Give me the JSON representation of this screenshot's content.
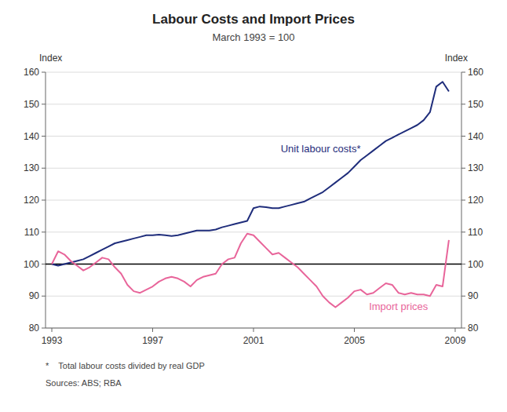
{
  "chart_data": {
    "type": "line",
    "title": "Labour Costs and Import Prices",
    "subtitle": "March 1993 = 100",
    "y_label": "Index",
    "y2_label": "Index",
    "footnotes": [
      "*    Total labour costs divided by real GDP",
      "Sources: ABS; RBA"
    ],
    "grid": true,
    "baseline": 100,
    "xlim": [
      1992.75,
      2009.25
    ],
    "xticks": [
      1993,
      1997,
      2001,
      2005,
      2009
    ],
    "ylim": [
      80,
      160
    ],
    "yticks": [
      80,
      90,
      100,
      110,
      120,
      130,
      140,
      150,
      160
    ],
    "y2lim": [
      80,
      160
    ],
    "y2ticks": [
      80,
      90,
      100,
      110,
      120,
      130,
      140,
      150,
      160
    ],
    "x": [
      1993.0,
      1993.25,
      1993.5,
      1993.75,
      1994.0,
      1994.25,
      1994.5,
      1994.75,
      1995.0,
      1995.25,
      1995.5,
      1995.75,
      1996.0,
      1996.25,
      1996.5,
      1996.75,
      1997.0,
      1997.25,
      1997.5,
      1997.75,
      1998.0,
      1998.25,
      1998.5,
      1998.75,
      1999.0,
      1999.25,
      1999.5,
      1999.75,
      2000.0,
      2000.25,
      2000.5,
      2000.75,
      2001.0,
      2001.25,
      2001.5,
      2001.75,
      2002.0,
      2002.25,
      2002.5,
      2002.75,
      2003.0,
      2003.25,
      2003.5,
      2003.75,
      2004.0,
      2004.25,
      2004.5,
      2004.75,
      2005.0,
      2005.25,
      2005.5,
      2005.75,
      2006.0,
      2006.25,
      2006.5,
      2006.75,
      2007.0,
      2007.25,
      2007.5,
      2007.75,
      2008.0,
      2008.25,
      2008.5,
      2008.75
    ],
    "series": [
      {
        "name": "Unit labour costs*",
        "color": "#1F2D7B",
        "values": [
          100.0,
          99.5,
          100.0,
          100.5,
          101.0,
          101.5,
          102.5,
          103.5,
          104.5,
          105.5,
          106.5,
          107.0,
          107.5,
          108.0,
          108.5,
          109.0,
          109.0,
          109.2,
          109.0,
          108.8,
          109.0,
          109.5,
          110.0,
          110.5,
          110.5,
          110.5,
          110.8,
          111.5,
          112.0,
          112.5,
          113.0,
          113.5,
          117.5,
          118.0,
          117.8,
          117.5,
          117.5,
          118.0,
          118.5,
          119.0,
          119.5,
          120.5,
          121.5,
          122.5,
          124.0,
          125.5,
          127.0,
          128.5,
          130.5,
          132.5,
          134.0,
          135.5,
          137.0,
          138.5,
          139.5,
          140.5,
          141.5,
          142.5,
          143.5,
          145.0,
          147.5,
          155.5,
          157.0,
          154.0
        ]
      },
      {
        "name": "Import prices",
        "color": "#E8659A",
        "values": [
          100.0,
          104.0,
          103.0,
          101.0,
          99.5,
          98.0,
          99.0,
          100.5,
          102.0,
          101.5,
          99.0,
          97.0,
          93.5,
          91.5,
          91.0,
          92.0,
          93.0,
          94.5,
          95.5,
          96.0,
          95.5,
          94.5,
          93.0,
          95.0,
          96.0,
          96.5,
          97.0,
          100.0,
          101.5,
          102.0,
          106.5,
          109.5,
          109.0,
          107.0,
          105.0,
          103.0,
          103.5,
          102.0,
          100.5,
          99.0,
          97.0,
          95.0,
          93.0,
          90.0,
          88.0,
          86.5,
          88.0,
          89.5,
          91.5,
          92.0,
          90.5,
          91.0,
          92.5,
          94.0,
          93.5,
          91.0,
          90.5,
          91.0,
          90.5,
          90.5,
          90.0,
          93.5,
          93.0,
          107.5
        ]
      }
    ]
  }
}
